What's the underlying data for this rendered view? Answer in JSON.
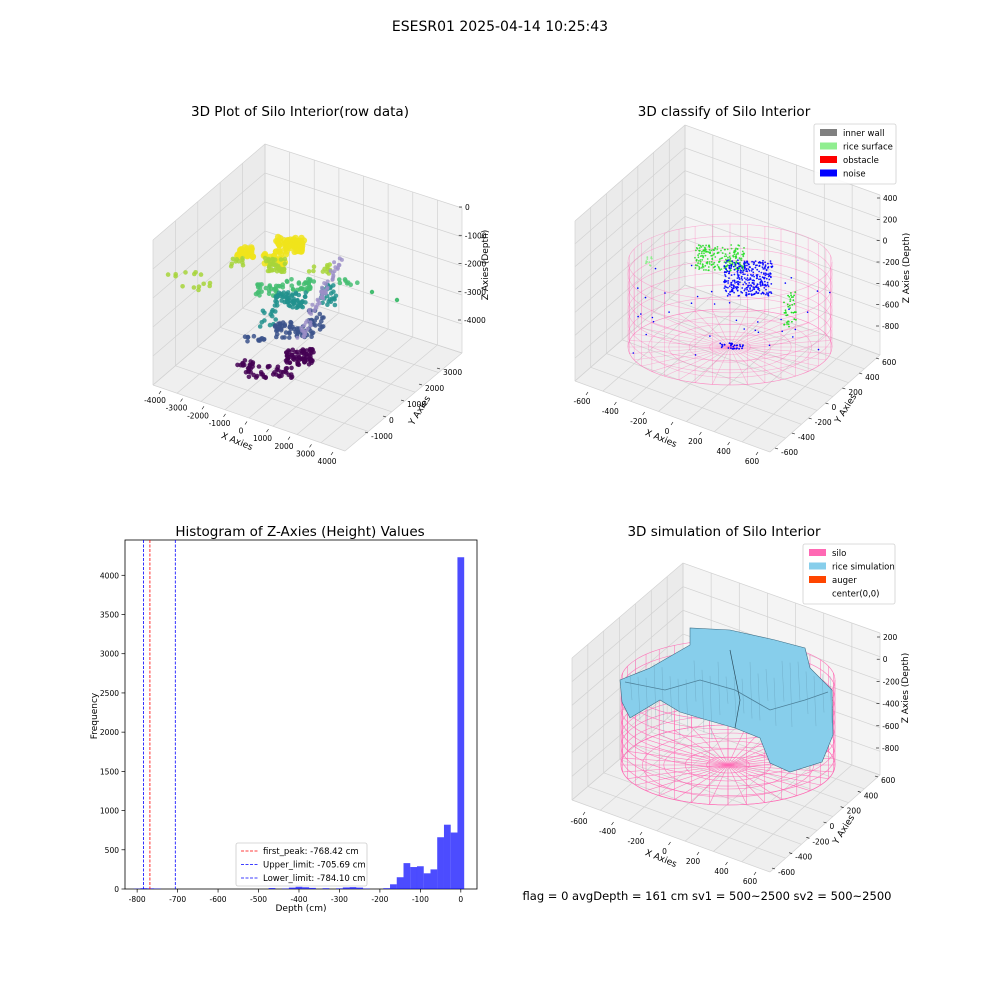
{
  "figure": {
    "suptitle": "ESESR01 2025-04-14 10:25:43",
    "status_text": "flag = 0     avgDepth = 161 cm  sv1 = 500~2500  sv2 = 500~2500"
  },
  "chart_data": [
    {
      "type": "scatter",
      "title": "3D Plot of Silo Interior(row data)",
      "xlabel": "X Axies",
      "ylabel": "Y Axies",
      "zlabel": "Z Axies (Depth)",
      "xticks": [
        "-4000",
        "-3000",
        "-2000",
        "-1000",
        "0",
        "1000",
        "2000",
        "3000",
        "4000"
      ],
      "yticks": [
        "-1000",
        "0",
        "1000",
        "2000",
        "3000"
      ],
      "zticks": [
        "0",
        "-1000",
        "-2000",
        "-3000",
        "-4000"
      ],
      "colormap": "viridis",
      "layers": [
        {
          "z": -1600,
          "color": "#f0e41b"
        },
        {
          "z": -2000,
          "color": "#a7d53a"
        },
        {
          "z": -2500,
          "color": "#44bd71"
        },
        {
          "z": -3000,
          "color": "#21908d"
        },
        {
          "z": -3500,
          "color": "#3b528b"
        },
        {
          "z": -4000,
          "color": "#440154"
        }
      ]
    },
    {
      "type": "scatter",
      "title": "3D classify of Silo Interior",
      "xlabel": "X Axies",
      "ylabel": "Y Axies",
      "zlabel": "Z Axies (Depth)",
      "xticks": [
        "-600",
        "-400",
        "-200",
        "0",
        "200",
        "400",
        "600"
      ],
      "yticks": [
        "-600",
        "-400",
        "-200",
        "0",
        "200",
        "400",
        "600"
      ],
      "zticks": [
        "400",
        "200",
        "0",
        "-200",
        "-400",
        "-600",
        "-800"
      ],
      "legend": [
        {
          "label": "inner wall",
          "color": "#808080"
        },
        {
          "label": "rice surface",
          "color": "#90ee90"
        },
        {
          "label": "obstacle",
          "color": "#ff0000"
        },
        {
          "label": "noise",
          "color": "#0000ff"
        }
      ],
      "legend_position": "top-right",
      "silo_color": "#ff69b4"
    },
    {
      "type": "bar",
      "title": "Histogram of Z-Axies (Height) Values",
      "xlabel": "Depth (cm)",
      "ylabel": "Frequency",
      "xlim": [
        -830,
        40
      ],
      "ylim": [
        0,
        4450
      ],
      "xticks": [
        -800,
        -700,
        -600,
        -500,
        -400,
        -300,
        -200,
        -100,
        0
      ],
      "yticks": [
        0,
        500,
        1000,
        1500,
        2000,
        2500,
        3000,
        3500,
        4000
      ],
      "bar_color": "#0000ff",
      "bin_width": 16.7,
      "bins": [
        {
          "x": -800,
          "value": 4
        },
        {
          "x": -783.3,
          "value": 10
        },
        {
          "x": -766.6,
          "value": 8
        },
        {
          "x": -749.9,
          "value": 5
        },
        {
          "x": -466.7,
          "value": 12
        },
        {
          "x": -433.3,
          "value": 6
        },
        {
          "x": -416.6,
          "value": 18
        },
        {
          "x": -400,
          "value": 28
        },
        {
          "x": -383.3,
          "value": 22
        },
        {
          "x": -366.6,
          "value": 14
        },
        {
          "x": -333.3,
          "value": 10
        },
        {
          "x": -300,
          "value": 8
        },
        {
          "x": -283.3,
          "value": 20
        },
        {
          "x": -266.6,
          "value": 24
        },
        {
          "x": -250,
          "value": 18
        },
        {
          "x": -233.3,
          "value": 6
        },
        {
          "x": -183.3,
          "value": 10
        },
        {
          "x": -166.6,
          "value": 60
        },
        {
          "x": -150,
          "value": 150
        },
        {
          "x": -133.3,
          "value": 330
        },
        {
          "x": -116.6,
          "value": 280
        },
        {
          "x": -100,
          "value": 290
        },
        {
          "x": -83.3,
          "value": 200
        },
        {
          "x": -66.6,
          "value": 250
        },
        {
          "x": -50,
          "value": 660
        },
        {
          "x": -33.3,
          "value": 820
        },
        {
          "x": -16.6,
          "value": 720
        },
        {
          "x": 0,
          "value": 4230
        }
      ],
      "vlines": [
        {
          "x": -768.42,
          "color": "#ff0000",
          "label": "first_peak: -768.42 cm"
        },
        {
          "x": -705.69,
          "color": "#0000ff",
          "label": "Upper_limit: -705.69 cm"
        },
        {
          "x": -784.1,
          "color": "#0000ff",
          "label": "Lower_limit: -784.10 cm"
        }
      ],
      "legend_position": "lower-center"
    },
    {
      "type": "surface",
      "title": "3D simulation of Silo Interior",
      "xlabel": "X Axies",
      "ylabel": "Y Axies",
      "zlabel": "Z Axies (Depth)",
      "xticks": [
        "-600",
        "-400",
        "-200",
        "0",
        "200",
        "400",
        "600"
      ],
      "yticks": [
        "-600",
        "-400",
        "-200",
        "0",
        "200",
        "400",
        "600"
      ],
      "zticks": [
        "200",
        "0",
        "-200",
        "-400",
        "-600",
        "-800"
      ],
      "legend": [
        {
          "label": "silo",
          "color": "#ff69b4"
        },
        {
          "label": "rice simulation",
          "color": "#87ceeb"
        },
        {
          "label": "auger",
          "color": "#ff4500"
        },
        {
          "label": "center(0,0)",
          "color": "#ffffff"
        }
      ],
      "legend_position": "top-right"
    }
  ]
}
